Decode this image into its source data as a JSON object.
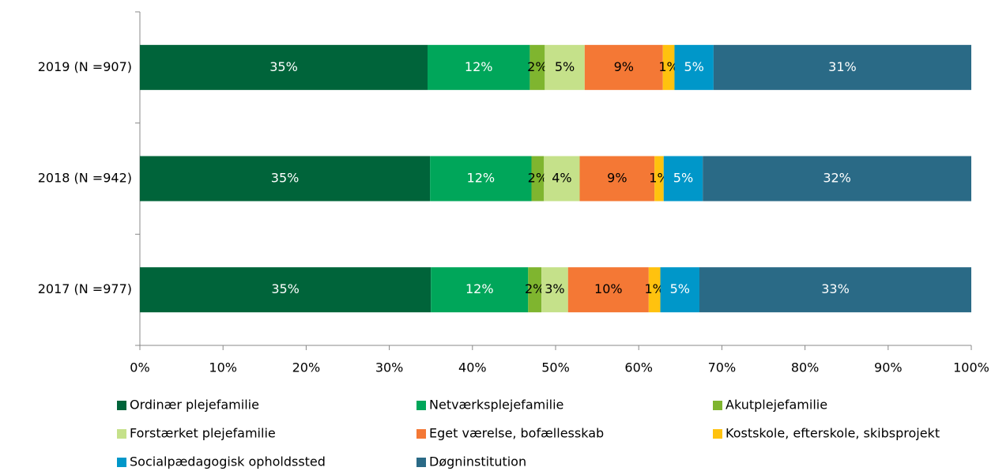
{
  "chart_data": {
    "type": "stacked-bar-horizontal",
    "categories": [
      "2019 (N =907)",
      "2018 (N =942)",
      "2017 (N =977)"
    ],
    "series": [
      {
        "name": "Ordinær plejefamilie",
        "color": "#00643a",
        "values": [
          34.6,
          34.9,
          35.0
        ],
        "value_labels": [
          "35%",
          "35%",
          "35%"
        ]
      },
      {
        "name": "Netværksplejefamilie",
        "color": "#00a65a",
        "values": [
          12.3,
          12.2,
          11.7
        ],
        "value_labels": [
          "12%",
          "12%",
          "12%"
        ]
      },
      {
        "name": "Akutplejefamilie",
        "color": "#7fb52f",
        "values": [
          1.8,
          1.5,
          1.6
        ],
        "value_labels": [
          "2%",
          "2%",
          "2%"
        ]
      },
      {
        "name": "Forstærket plejefamilie",
        "color": "#c5e18a",
        "values": [
          4.8,
          4.3,
          3.2
        ],
        "value_labels": [
          "5%",
          "4%",
          "3%"
        ]
      },
      {
        "name": "Eget værelse, bofællesskab",
        "color": "#f47835",
        "values": [
          9.4,
          9.0,
          9.7
        ],
        "value_labels": [
          "9%",
          "9%",
          "10%"
        ]
      },
      {
        "name": "Kostskole, efterskole, skibsprojekt",
        "color": "#ffc20e",
        "values": [
          1.4,
          1.1,
          1.4
        ],
        "value_labels": [
          "1%",
          "1%",
          "1%"
        ]
      },
      {
        "name": "Socialpædagogisk opholdssted",
        "color": "#0097c9",
        "values": [
          4.7,
          4.7,
          4.7
        ],
        "value_labels": [
          "5%",
          "5%",
          "5%"
        ]
      },
      {
        "name": "Døgninstitution",
        "color": "#2a6a86",
        "values": [
          31.0,
          32.3,
          32.7
        ],
        "value_labels": [
          "31%",
          "32%",
          "33%"
        ]
      }
    ],
    "xlim": [
      0,
      100
    ],
    "xticks": [
      {
        "value": 0,
        "label": "0%"
      },
      {
        "value": 10,
        "label": "10%"
      },
      {
        "value": 20,
        "label": "20%"
      },
      {
        "value": 30,
        "label": "30%"
      },
      {
        "value": 40,
        "label": "40%"
      },
      {
        "value": 50,
        "label": "50%"
      },
      {
        "value": 60,
        "label": "60%"
      },
      {
        "value": 70,
        "label": "70%"
      },
      {
        "value": 80,
        "label": "80%"
      },
      {
        "value": 90,
        "label": "90%"
      },
      {
        "value": 100,
        "label": "100%"
      }
    ],
    "legend": "bottom"
  }
}
